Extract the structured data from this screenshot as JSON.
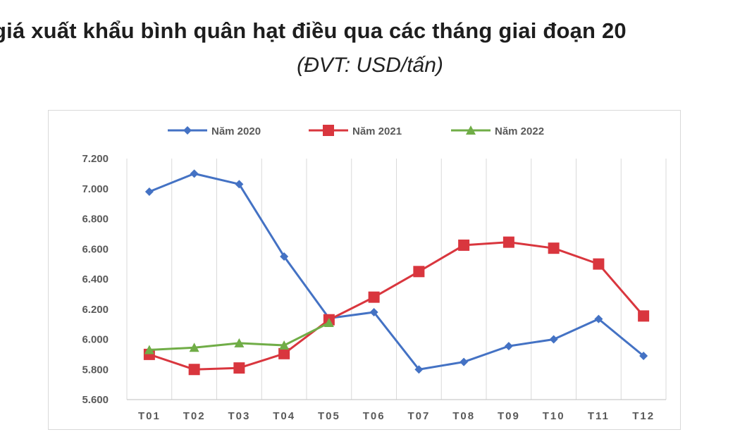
{
  "title": "giá xuất khẩu bình quân hạt điều qua các tháng giai đoạn 20",
  "subtitle": "(ĐVT: USD/tấn)",
  "chart_data": {
    "type": "line",
    "categories": [
      "T01",
      "T02",
      "T03",
      "T04",
      "T05",
      "T06",
      "T07",
      "T08",
      "T09",
      "T10",
      "T11",
      "T12"
    ],
    "ylim": [
      5600,
      7200
    ],
    "yticks": [
      5600,
      5800,
      6000,
      6200,
      6400,
      6600,
      6800,
      7000,
      7200
    ],
    "ytick_labels": [
      "5.600",
      "5.800",
      "6.000",
      "6.200",
      "6.400",
      "6.600",
      "6.800",
      "7.000",
      "7.200"
    ],
    "grid": "vertical",
    "legend_position": "top",
    "series": [
      {
        "name": "Năm 2020",
        "color": "#4472c4",
        "marker": "diamond",
        "values": [
          6980,
          7100,
          7030,
          6550,
          6140,
          6180,
          5800,
          5850,
          5955,
          6000,
          6135,
          5890
        ]
      },
      {
        "name": "Năm 2021",
        "color": "#d9363e",
        "marker": "square",
        "values": [
          5900,
          5800,
          5810,
          5905,
          6130,
          6280,
          6450,
          6625,
          6645,
          6605,
          6500,
          6155
        ]
      },
      {
        "name": "Năm 2022",
        "color": "#70ad47",
        "marker": "triangle",
        "values": [
          5930,
          5945,
          5975,
          5960,
          6110,
          null,
          null,
          null,
          null,
          null,
          null,
          null
        ]
      }
    ]
  }
}
